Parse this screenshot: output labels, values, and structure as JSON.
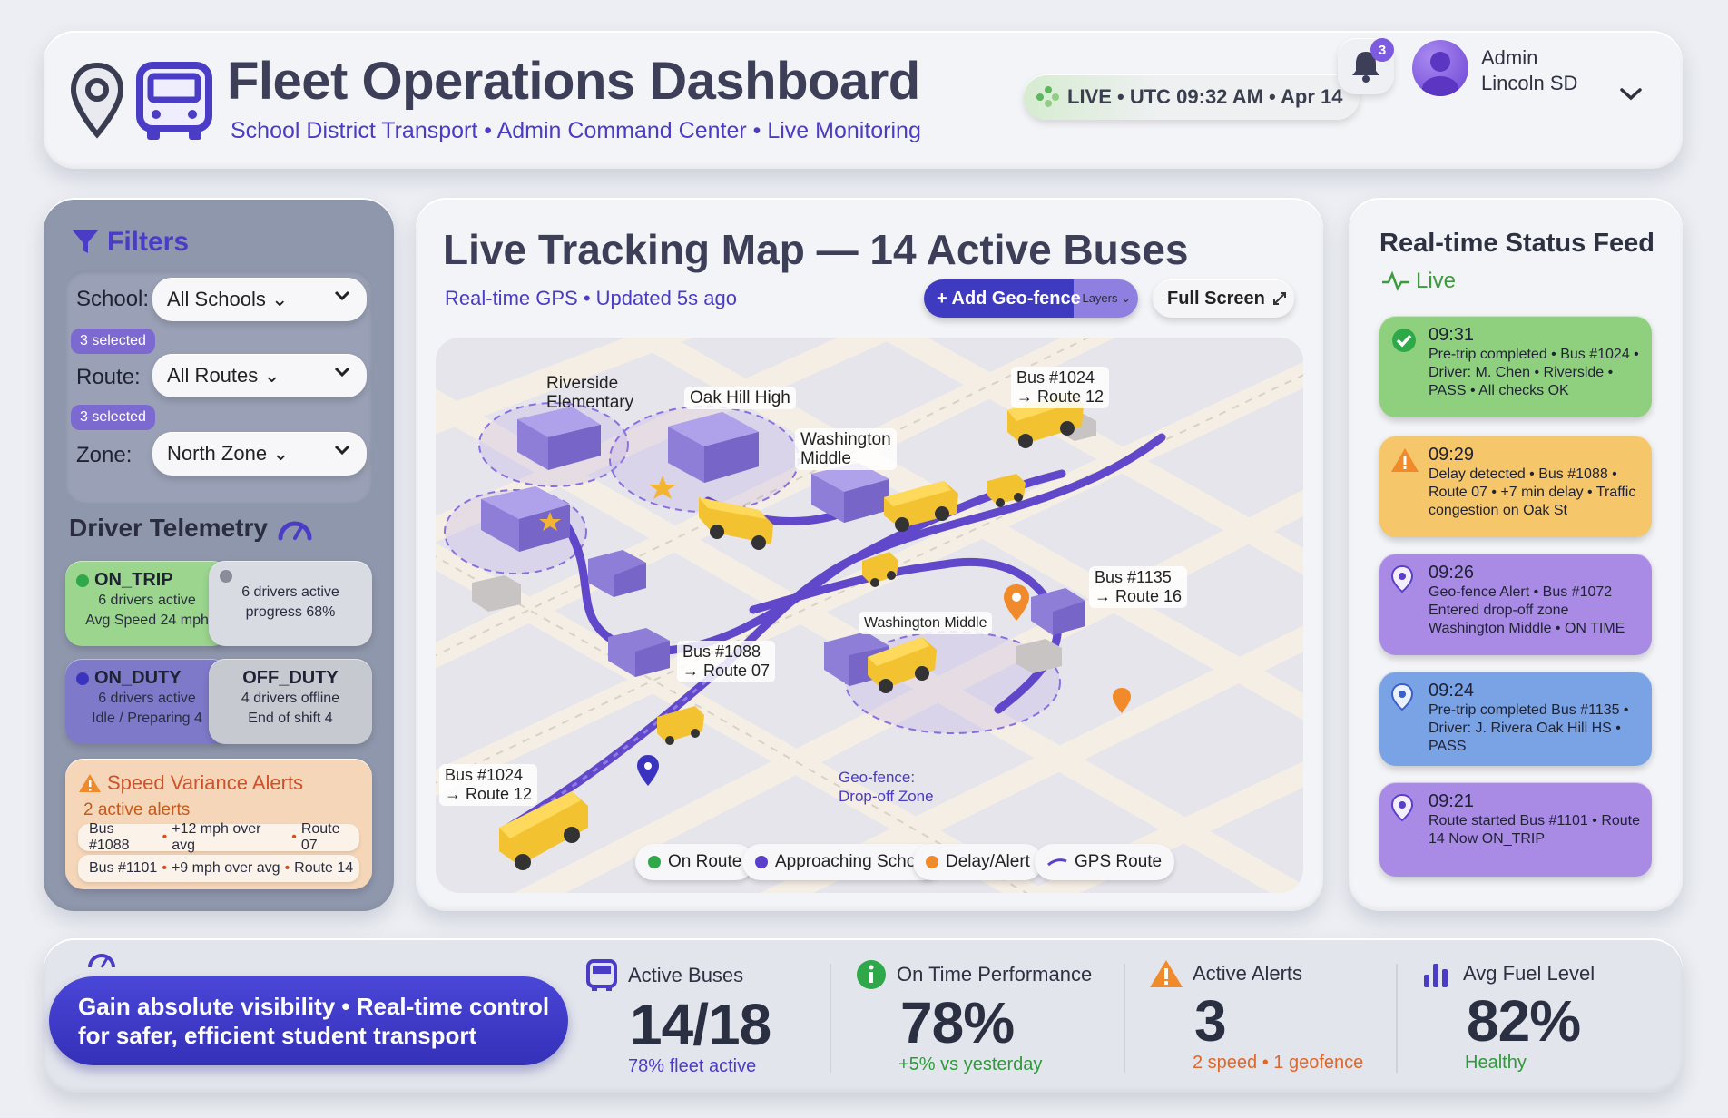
{
  "header": {
    "title": "Fleet Operations Dashboard",
    "subtitle": "School District Transport • Admin Command Center • Live Monitoring",
    "live_status": "LIVE • UTC 09:32 AM • Apr 14",
    "notification_count": "3",
    "user_line1": "Admin",
    "user_line2": "Lincoln SD"
  },
  "filters": {
    "title": "Filters",
    "school_label": "School:",
    "school_value": "All Schools ⌄",
    "school_tag": "3 selected",
    "route_label": "Route:",
    "route_value": "All Routes ⌄",
    "route_tag": "3 selected",
    "zone_label": "Zone:",
    "zone_value": "North Zone ⌄"
  },
  "telemetry": {
    "title": "Driver Telemetry",
    "cards": [
      {
        "status": "ON_TRIP",
        "line1": "6 drivers active",
        "line2": "Avg Speed 24 mph",
        "color": "#9bd58e",
        "dot": "#2fa84a"
      },
      {
        "status": "",
        "line1": "6 drivers active",
        "line2": "progress 68%",
        "color": "#d9dbe2",
        "dot": "#8a8d99"
      },
      {
        "status": "ON_DUTY",
        "line1": "6 drivers active",
        "line2": "Idle / Preparing 4",
        "color": "#7e79c9",
        "dot": "#3a33c0"
      },
      {
        "status": "OFF_DUTY",
        "line1": "4 drivers offline",
        "line2": "End of shift 4",
        "color": "#c7c9d1",
        "dot": ""
      }
    ]
  },
  "speed_alerts": {
    "title": "Speed Variance Alerts",
    "count": "2 active alerts",
    "rows": [
      {
        "bus": "Bus #1088",
        "detail": "+12 mph over avg",
        "route": "Route 07"
      },
      {
        "bus": "Bus #1101",
        "detail": "+9 mph over avg",
        "route": "Route 14"
      }
    ]
  },
  "map": {
    "title": "Live Tracking Map — 14 Active Buses",
    "subtitle": "Real-time GPS • Updated 5s ago",
    "add_geofence": "+ Add Geo-fence",
    "layers": "Layers ⌄",
    "full_screen": "Full Screen",
    "labels": {
      "riverside": "Riverside\nElementary",
      "oakhill": "Oak Hill High",
      "washington1": "Washington\nMiddle",
      "washington2": "Washington Middle",
      "bus1024a": "Bus #1024\n→ Route 12",
      "bus1135": "Bus #1135\n→ Route 16",
      "bus1088": "Bus #1088\n→ Route 07",
      "bus1024b": "Bus #1024\n→ Route 12",
      "geofence": "Geo-fence:\nDrop-off Zone"
    },
    "legend": [
      {
        "label": "On Route",
        "color": "#2fa84a"
      },
      {
        "label": "Approaching School",
        "color": "#5a3fc8"
      },
      {
        "label": "Delay/Alert",
        "color": "#f08a2a"
      },
      {
        "label": "GPS Route",
        "color": "#5a3fc8"
      }
    ]
  },
  "feed": {
    "title": "Real-time Status Feed",
    "live": "Live",
    "items": [
      {
        "time": "09:31",
        "text": "Pre-trip completed • Bus #1024 • Driver: M. Chen • Riverside • PASS • All checks OK",
        "color": "#8fd07f",
        "icon": "check-circle-icon"
      },
      {
        "time": "09:29",
        "text": "Delay detected • Bus #1088 • Route 07 • +7 min delay • Traffic congestion on Oak St",
        "color": "#f6c66a",
        "icon": "warning-icon"
      },
      {
        "time": "09:26",
        "text": "Geo-fence Alert • Bus #1072 Entered drop-off zone Washington Middle • ON TIME",
        "color": "#a98be6",
        "icon": "location-pin-icon"
      },
      {
        "time": "09:24",
        "text": "Pre-trip completed Bus #1135 • Driver: J. Rivera Oak Hill HS • PASS",
        "color": "#7aa3e6",
        "icon": "location-pin-icon"
      },
      {
        "time": "09:21",
        "text": "Route started Bus #1101 • Route 14 Now ON_TRIP",
        "color": "#a98be6",
        "icon": "location-pin-icon"
      }
    ]
  },
  "bottom": {
    "tagline_line1": "Gain absolute visibility • Real-time control",
    "tagline_line2": "for safer, efficient student transport",
    "kpis": [
      {
        "label": "Active Buses",
        "value": "14/18",
        "sub": "78% fleet active",
        "sub_color": "#4a3cc4",
        "icon": "bus-icon"
      },
      {
        "label": "On Time Performance",
        "value": "78%",
        "sub": "+5% vs yesterday",
        "sub_color": "#2f9a3a",
        "icon": "info-circle-icon"
      },
      {
        "label": "Active Alerts",
        "value": "3",
        "sub": "2 speed • 1 geofence",
        "sub_color": "#e0672a",
        "icon": "warning-icon"
      },
      {
        "label": "Avg Fuel Level",
        "value": "82%",
        "sub": "Healthy",
        "sub_color": "#2f9a3a",
        "icon": "bar-chart-icon"
      }
    ]
  }
}
